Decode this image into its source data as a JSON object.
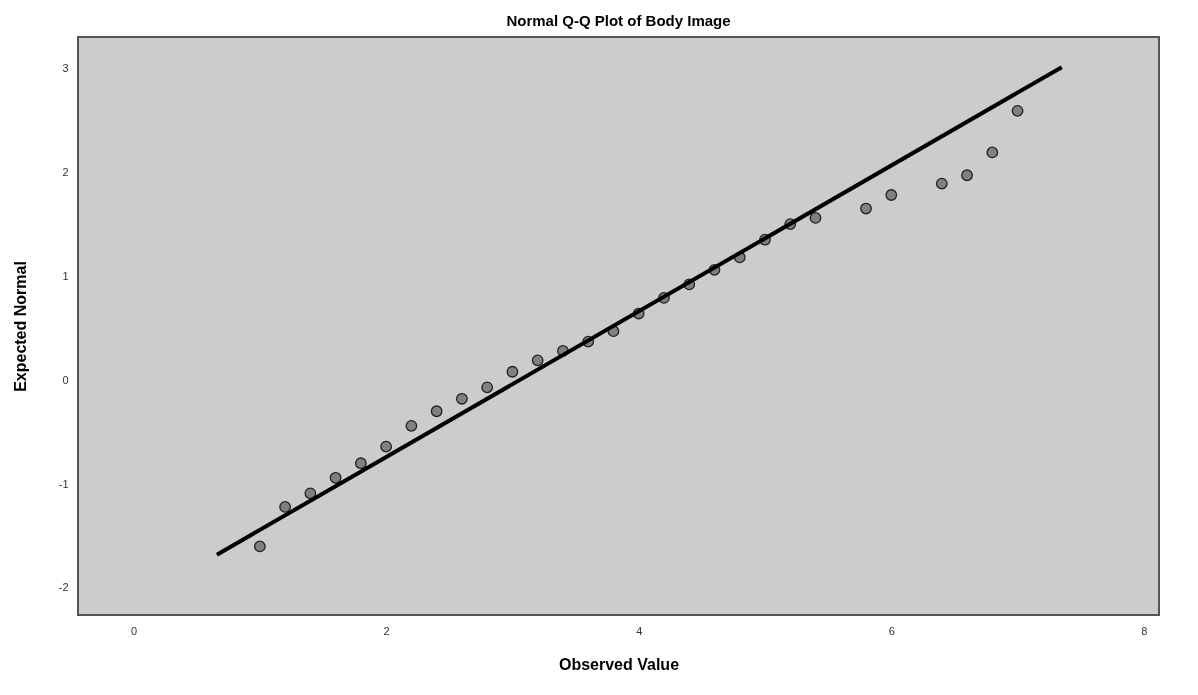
{
  "chart_data": {
    "type": "scatter",
    "title": "Normal Q-Q Plot of Body Image",
    "xlabel": "Observed Value",
    "ylabel": "Expected Normal",
    "xlim": [
      -0.44,
      8.12
    ],
    "ylim": [
      -2.26,
      3.3
    ],
    "xticks": [
      0,
      2,
      4,
      6,
      8
    ],
    "yticks": [
      -2,
      -1,
      0,
      1,
      2,
      3
    ],
    "grid": false,
    "series": [
      {
        "color": "#808080",
        "marker": "circle",
        "x": [
          1.0,
          1.2,
          1.4,
          1.6,
          1.8,
          2.0,
          2.2,
          2.4,
          2.6,
          2.8,
          3.0,
          3.2,
          3.4,
          3.6,
          3.8,
          4.0,
          4.2,
          4.4,
          4.6,
          4.8,
          5.0,
          5.2,
          5.4,
          5.8,
          6.0,
          6.4,
          6.6,
          6.8,
          7.0
        ],
        "values": [
          -1.6,
          -1.22,
          -1.09,
          -0.94,
          -0.8,
          -0.64,
          -0.44,
          -0.3,
          -0.18,
          -0.07,
          0.08,
          0.19,
          0.28,
          0.37,
          0.47,
          0.64,
          0.79,
          0.92,
          1.06,
          1.18,
          1.35,
          1.5,
          1.56,
          1.65,
          1.78,
          1.89,
          1.97,
          2.19,
          2.59
        ]
      },
      {
        "type": "line",
        "color": "#000000",
        "line_style": "solid",
        "x": [
          0.66,
          7.35
        ],
        "values": [
          -1.68,
          3.01
        ]
      }
    ]
  }
}
